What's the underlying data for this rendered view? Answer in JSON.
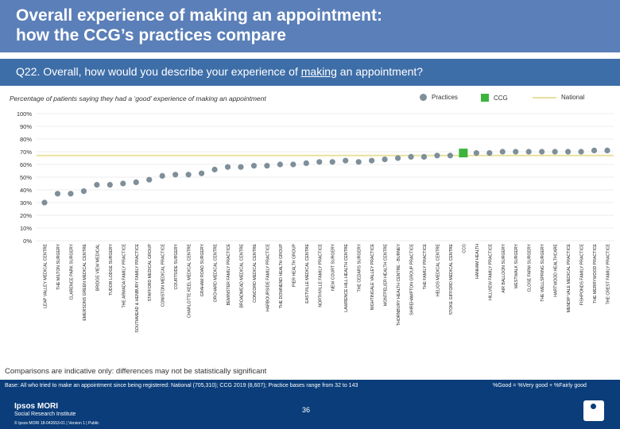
{
  "header": {
    "title_line1": "Overall experience of making an appointment:",
    "title_line2": "how the CCG’s practices compare"
  },
  "question": {
    "prefix": "Q22. Overall, how would you describe your experience of ",
    "emph": "making",
    "suffix": " an appointment?"
  },
  "subtitle": "Percentage of patients saying they had a ‘good’ experience of making an appointment",
  "legend": {
    "practices": "Practices",
    "ccg": "CCG",
    "national": "National"
  },
  "colors": {
    "practice": "#7e8f9a",
    "ccg": "#3cb43c",
    "national": "#e8e0a0",
    "header": "#5b7fb8",
    "footer": "#0a3d7a"
  },
  "chart_data": {
    "type": "scatter",
    "y_ticks": [
      "100%",
      "90%",
      "80%",
      "70%",
      "60%",
      "50%",
      "40%",
      "30%",
      "20%",
      "10%",
      "0%"
    ],
    "ylim": [
      0,
      100
    ],
    "national": 67,
    "categories": [
      "LEAP VALLEY MEDICAL CENTRE",
      "THE MILTON SURGERY",
      "CLARENCE PARK SURGERY",
      "EMERSONS GREEN MEDICAL CENTRE",
      "BRIDGE VIEW MEDICAL",
      "TUDOR LODGE SURGERY",
      "THE ARMADA FAMILY PRACTICE",
      "SOUTHMEAD & HENBURY FAMILY PRACTICE",
      "STAFFORD MEDICAL GROUP",
      "CONISTON MEDICAL PRACTICE",
      "COURTSIDE SURGERY",
      "CHARLOTTE KEEL MEDICAL CENTRE",
      "GRAHAM ROAD SURGERY",
      "ORCHARD MEDICAL CENTRE",
      "BEMINSTER FAMILY PRACTICE",
      "BROADMEAD MEDICAL CENTRE",
      "CONCORD MEDICAL CENTRE",
      "HARBOURSIDE FAMILY PRACTICE",
      "THE DOWNEND HEALTH GROUP",
      "PIER HEALTH GROUP",
      "EASTVILLE MEDICAL CENTRE",
      "NORTHVILLE FAMILY PRACTICE",
      "NEW COURT SURGERY",
      "LAWRENCE HILL HEALTH CENTRE",
      "THE CEDARS SURGERY",
      "NIGHTINGALE VALLEY PRACTICE",
      "MONTPELIER HEALTH CENTRE",
      "THORNBURY HEALTH CENTRE - BURNEY",
      "SHIREHAMPTON GROUP PRACTICE",
      "THE FAMILY PRACTICE",
      "HELIOS MEDICAL CENTRE",
      "STOKE GIFFORD MEDICAL CENTRE",
      "CCG",
      "HANHAM HEALTH",
      "HILLVIEW FAMILY PRACTICE",
      "AIR BALLOON SURGERY",
      "WESTWALK SURGERY",
      "CLOSE FARM SURGERY",
      "THE WELLSPRING SURGERY",
      "HARTWOOD HEALTHCARE",
      "MENDIP VALE MEDICAL PRACTICE",
      "FISHPONDS FAMILY PRACTICE",
      "THE MERRYWOOD PRACTICE",
      "THE CREST FAMILY PRACTICE"
    ],
    "values": [
      30,
      37,
      37,
      39,
      44,
      44,
      45,
      46,
      48,
      51,
      52,
      52,
      53,
      56,
      58,
      58,
      59,
      59,
      60,
      60,
      61,
      62,
      62,
      63,
      62,
      63,
      64,
      65,
      66,
      66,
      67,
      67,
      69,
      69,
      69,
      70,
      70,
      70,
      70,
      70,
      70,
      70,
      71,
      71
    ],
    "ccg_index": 32
  },
  "note": "Comparisons are indicative only: differences may not be statistically significant",
  "footer": {
    "base": "Base: All who tried to make an appointment since being registered: National (705,310); CCG 2019 (8,607); Practice bases range from 32 to 143",
    "definition": "%Good = %Very good + %Fairly good",
    "page": "36",
    "brand1": "Ipsos MORI",
    "brand2": "Social Research Institute",
    "copyright": "© Ipsos MORI     18-042653-01 | Version 1 | Public"
  }
}
